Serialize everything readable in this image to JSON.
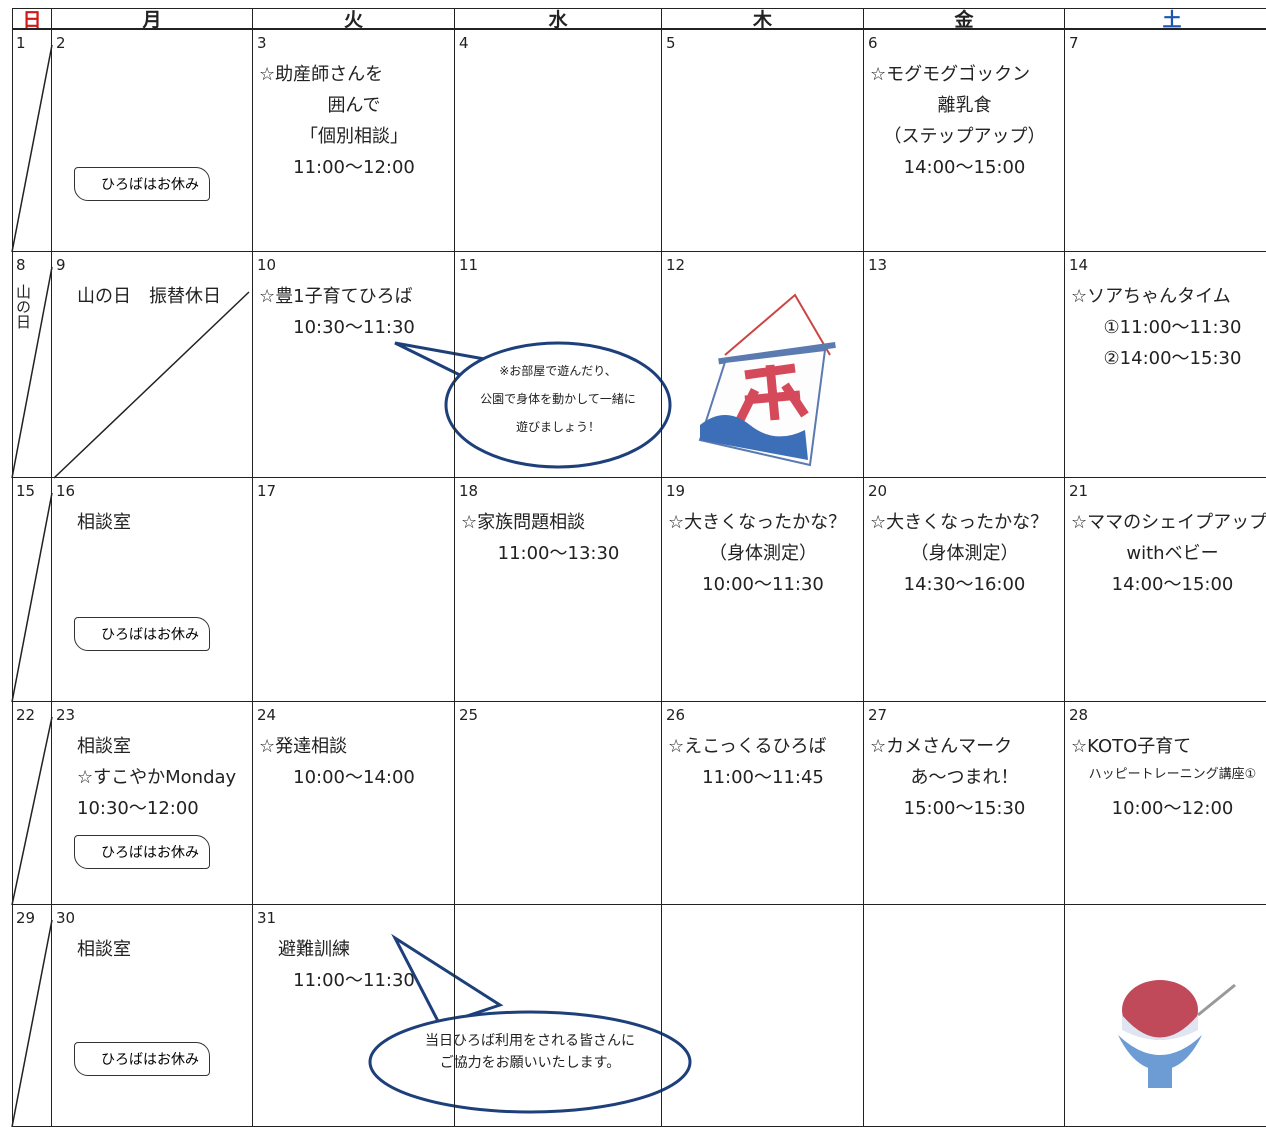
{
  "header": {
    "days": [
      "日",
      "月",
      "火",
      "水",
      "木",
      "金",
      "土"
    ]
  },
  "weeks": [
    [
      {
        "date": "1"
      },
      {
        "date": "2",
        "closed": "ひろばはお休み"
      },
      {
        "date": "3",
        "lines": [
          "☆助産師さんを",
          "囲んで",
          "「個別相談」",
          "11:00～12:00"
        ]
      },
      {
        "date": "4"
      },
      {
        "date": "5"
      },
      {
        "date": "6",
        "lines": [
          "☆モグモグゴックン",
          "離乳食",
          "（ステップアップ）",
          "14:00～15:00"
        ]
      },
      {
        "date": "7"
      }
    ],
    [
      {
        "date": "8",
        "holiday": "山の日"
      },
      {
        "date": "9",
        "lines": [
          "山の日　振替休日"
        ]
      },
      {
        "date": "10",
        "lines": [
          "☆豊1子育てひろば",
          "10:30～11:30"
        ]
      },
      {
        "date": "11"
      },
      {
        "date": "12"
      },
      {
        "date": "13"
      },
      {
        "date": "14",
        "lines": [
          "☆ソアちゃんタイム",
          "①11:00～11:30",
          "②14:00～15:30"
        ]
      }
    ],
    [
      {
        "date": "15"
      },
      {
        "date": "16",
        "lines": [
          "相談室"
        ],
        "closed": "ひろばはお休み"
      },
      {
        "date": "17"
      },
      {
        "date": "18",
        "lines": [
          "☆家族問題相談",
          "11:00～13:30"
        ]
      },
      {
        "date": "19",
        "lines": [
          "☆大きくなったかな？",
          "（身体測定）",
          "10:00～11:30"
        ]
      },
      {
        "date": "20",
        "lines": [
          "☆大きくなったかな？",
          "（身体測定）",
          "14:30～16:00"
        ]
      },
      {
        "date": "21",
        "lines": [
          "☆ママのシェイプアップ",
          "withベビー",
          "14:00～15:00"
        ]
      }
    ],
    [
      {
        "date": "22"
      },
      {
        "date": "23",
        "lines": [
          "相談室",
          "☆すこやかMonday",
          "10:30～12:00"
        ],
        "closed": "ひろばはお休み"
      },
      {
        "date": "24",
        "lines": [
          "☆発達相談",
          "10:00～14:00"
        ]
      },
      {
        "date": "25"
      },
      {
        "date": "26",
        "lines": [
          "☆えこっくるひろば",
          "11:00～11:45"
        ]
      },
      {
        "date": "27",
        "lines": [
          "☆カメさんマーク",
          "あ～つまれ！",
          "15:00～15:30"
        ]
      },
      {
        "date": "28",
        "lines": [
          "☆KOTO子育て",
          "ハッピートレーニング講座①",
          "10:00～12:00"
        ]
      }
    ],
    [
      {
        "date": "29"
      },
      {
        "date": "30",
        "lines": [
          "相談室"
        ],
        "closed": "ひろばはお休み"
      },
      {
        "date": "31",
        "lines": [
          "避難訓練",
          "11:00～11:30"
        ]
      },
      {
        "date": ""
      },
      {
        "date": ""
      },
      {
        "date": ""
      },
      {
        "date": ""
      }
    ]
  ],
  "notes": [
    [
      "※お部屋で遊んだり、",
      "公園で身体を動かして一緒に",
      "遊びましょう！"
    ],
    [
      "当日ひろば利用をされる皆さんに",
      "ご協力をお願いいたします。"
    ]
  ]
}
